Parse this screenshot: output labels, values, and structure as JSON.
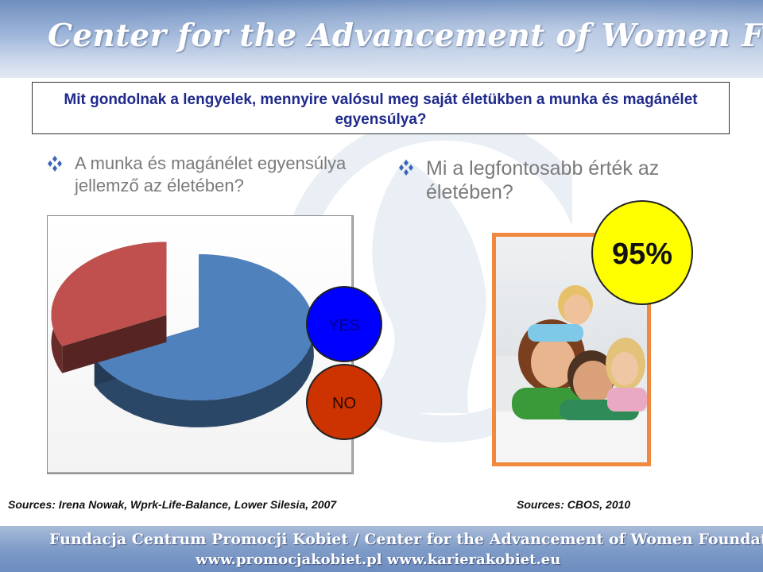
{
  "header": {
    "title": "Center for the Advancement of Women Foundation"
  },
  "question": {
    "text": "Mit gondolnak a lengyelek, mennyire valósul meg saját életükben a munka és magánélet egyensúlya?"
  },
  "bullets": {
    "left": "A munka és magánélet egyensúlya jellemző az életében?",
    "right": "Mi a legfontosabb érték az életében?"
  },
  "chart_data": {
    "type": "pie",
    "title": "",
    "categories": [
      "YES",
      "NO"
    ],
    "values": [
      68,
      32
    ],
    "colors": [
      "#4f81bd",
      "#c0504d"
    ],
    "legend_placement": "right",
    "exploded": "NO"
  },
  "legend": {
    "yes": "YES",
    "no": "NO",
    "yes_color": "#0000ff",
    "no_color": "#cc3300"
  },
  "highlight": {
    "value": "95%",
    "color": "#ffff00"
  },
  "sources": {
    "left": "Sources: Irena Nowak, Wprk-Life-Balance, Lower Silesia, 2007",
    "right": "Sources: CBOS, 2010"
  },
  "footer": {
    "line1": "Fundacja Centrum Promocji Kobiet / Center for the Advancement of Women Foundation",
    "line2": "www.promocjakobiet.pl     www.karierakobiet.eu"
  }
}
